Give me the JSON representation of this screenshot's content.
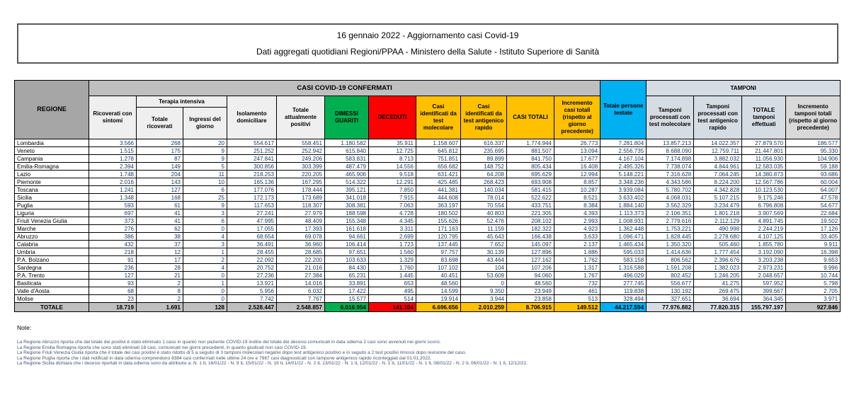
{
  "title": {
    "line1": "16 gennaio 2022 - Aggiornamento casi Covid-19",
    "line2": "Dati aggregati quotidiani Regioni/PPAA - Ministero della Salute - Istituto Superiore di Sanità"
  },
  "colors": {
    "green_dimessi": "#00B050",
    "red_deceduti": "#FF0000",
    "amber_casi": "#FFC000",
    "cyan_testate": "#00B0F0",
    "periwinkle_tamponi": "#D6DCE4",
    "gray_regione": "#A6A6A6",
    "gray_band": "#BFBFBF",
    "gray_light": "#D9D9D9",
    "number_text": "#17375E"
  },
  "table": {
    "header": {
      "regione": "REGIONE",
      "group_confermati": "CASI COVID-19 CONFERMATI",
      "group_tamponi": "TAMPONI",
      "group_terapia": "Terapia intensiva",
      "ricoverati": "Ricoverati con sintomi",
      "totale_ricoverati": "Totale ricoverati",
      "ingressi": "Ingressi del giorno",
      "isolamento": "Isolamento domiciliare",
      "attualmente_positivi": "Totale attualmente positivi",
      "dimessi": "DIMESSI GUARITI",
      "deceduti": "DECEDUTI",
      "casi_molecolare": "Casi identificati da test molecolare",
      "casi_antigenico": "Casi identificati da test antigenico rapido",
      "casi_totali": "CASI TOTALI",
      "incremento_casi": "Incremento casi totali (rispetto al giorno precedente)",
      "persone_testate": "Totale persone testate",
      "tamponi_molecolare": "Tamponi processati con test molecolare",
      "tamponi_antigenico": "Tamponi processati con test antigenico rapido",
      "totale_tamponi": "TOTALE tamponi effettuati",
      "incremento_tamponi": "Incremento tamponi totali (rispetto al giorno precedente)"
    },
    "rows": [
      {
        "region": "Lombardia",
        "values": [
          "3.566",
          "268",
          "20",
          "554.617",
          "558.451",
          "1.180.582",
          "35.911",
          "1.158.607",
          "616.337",
          "1.774.944",
          "26.773",
          "7.281.804",
          "13.857.213",
          "14.022.357",
          "27.879.570",
          "186.577"
        ]
      },
      {
        "region": "Veneto",
        "values": [
          "1.515",
          "175",
          "9",
          "251.252",
          "252.942",
          "615.840",
          "12.725",
          "645.812",
          "235.695",
          "881.507",
          "13.094",
          "2.556.735",
          "8.688.090",
          "12.759.711",
          "21.447.801",
          "95.330"
        ]
      },
      {
        "region": "Campania",
        "values": [
          "1.278",
          "87",
          "9",
          "247.841",
          "249.206",
          "583.831",
          "8.713",
          "751.851",
          "89.899",
          "841.750",
          "17.677",
          "4.167.104",
          "7.174.898",
          "3.882.032",
          "11.056.930",
          "104.906"
        ]
      },
      {
        "region": "Emilia-Romagna",
        "values": [
          "2.394",
          "149",
          "5",
          "300.856",
          "303.399",
          "487.479",
          "14.556",
          "656.682",
          "148.752",
          "805.434",
          "16.408",
          "2.495.326",
          "7.738.074",
          "4.844.961",
          "12.583.035",
          "59.188"
        ]
      },
      {
        "region": "Lazio",
        "values": [
          "1.748",
          "204",
          "11",
          "218.253",
          "220.205",
          "465.906",
          "9.518",
          "631.421",
          "64.208",
          "695.629",
          "12.994",
          "5.148.221",
          "7.316.628",
          "7.064.245",
          "14.380.873",
          "93.686"
        ]
      },
      {
        "region": "Piemonte",
        "values": [
          "2.016",
          "143",
          "10",
          "165.136",
          "167.295",
          "514.322",
          "12.291",
          "425.485",
          "268.423",
          "693.908",
          "8.857",
          "3.348.236",
          "4.343.586",
          "8.224.200",
          "12.567.786",
          "60.004"
        ]
      },
      {
        "region": "Toscana",
        "values": [
          "1.241",
          "127",
          "6",
          "177.076",
          "178.444",
          "395.121",
          "7.850",
          "441.381",
          "140.034",
          "581.415",
          "10.287",
          "3.939.084",
          "5.780.702",
          "4.342.828",
          "10.123.530",
          "64.007"
        ]
      },
      {
        "region": "Sicilia",
        "values": [
          "1.348",
          "168",
          "25",
          "172.173",
          "173.689",
          "341.018",
          "7.915",
          "444.608",
          "78.014",
          "522.622",
          "8.521",
          "3.633.402",
          "4.068.031",
          "5.107.215",
          "9.175.246",
          "47.578"
        ]
      },
      {
        "region": "Puglia",
        "values": [
          "593",
          "61",
          "9",
          "117.653",
          "118.307",
          "308.381",
          "7.063",
          "363.197",
          "70.554",
          "433.751",
          "8.384",
          "1.884.140",
          "3.562.329",
          "3.234.479",
          "6.796.808",
          "54.677"
        ]
      },
      {
        "region": "Liguria",
        "values": [
          "697",
          "41",
          "3",
          "27.241",
          "27.979",
          "188.598",
          "4.728",
          "180.502",
          "40.803",
          "221.305",
          "4.393",
          "1.113.373",
          "2.106.351",
          "1.801.218",
          "3.907.569",
          "22.684"
        ]
      },
      {
        "region": "Friuli Venezia Giulia",
        "values": [
          "373",
          "41",
          "6",
          "47.995",
          "48.409",
          "155.348",
          "4.345",
          "155.626",
          "52.476",
          "208.102",
          "2.993",
          "1.008.931",
          "2.779.616",
          "2.112.129",
          "4.891.745",
          "19.502"
        ]
      },
      {
        "region": "Marche",
        "values": [
          "276",
          "62",
          "0",
          "17.055",
          "17.393",
          "161.618",
          "3.311",
          "171.163",
          "11.159",
          "182.322",
          "4.923",
          "1.362.448",
          "1.753.221",
          "490.998",
          "2.244.219",
          "17.126"
        ]
      },
      {
        "region": "Abruzzo",
        "values": [
          "386",
          "38",
          "4",
          "68.654",
          "69.078",
          "94.661",
          "2.699",
          "120.795",
          "45.643",
          "166.438",
          "3.633",
          "1.096.471",
          "1.828.445",
          "2.278.680",
          "4.107.125",
          "33.405"
        ]
      },
      {
        "region": "Calabria",
        "values": [
          "432",
          "37",
          "3",
          "36.491",
          "36.960",
          "106.414",
          "1.723",
          "137.445",
          "7.652",
          "145.097",
          "2.137",
          "1.465.434",
          "1.350.320",
          "505.460",
          "1.855.780",
          "9.911"
        ]
      },
      {
        "region": "Umbria",
        "values": [
          "218",
          "12",
          "1",
          "28.455",
          "28.685",
          "97.651",
          "1.560",
          "97.757",
          "30.139",
          "127.896",
          "1.886",
          "595.033",
          "1.414.636",
          "1.777.454",
          "3.192.090",
          "16.398"
        ]
      },
      {
        "region": "P.A. Bolzano",
        "values": [
          "91",
          "17",
          "2",
          "22.092",
          "22.200",
          "103.633",
          "1.329",
          "83.698",
          "43.464",
          "127.162",
          "1.762",
          "583.158",
          "806.562",
          "2.396.676",
          "3.203.238",
          "9.653"
        ]
      },
      {
        "region": "Sardegna",
        "values": [
          "236",
          "28",
          "4",
          "20.752",
          "21.016",
          "84.430",
          "1.760",
          "107.102",
          "104",
          "107.206",
          "1.317",
          "1.316.588",
          "1.591.208",
          "1.382.023",
          "2.973.231",
          "9.996"
        ]
      },
      {
        "region": "P.A. Trento",
        "values": [
          "127",
          "21",
          "0",
          "27.236",
          "27.384",
          "65.231",
          "1.445",
          "40.451",
          "53.609",
          "94.060",
          "1.767",
          "496.029",
          "802.452",
          "1.246.205",
          "2.048.657",
          "10.744"
        ]
      },
      {
        "region": "Basilicata",
        "values": [
          "93",
          "2",
          "1",
          "13.921",
          "14.016",
          "33.891",
          "653",
          "48.560",
          "0",
          "48.560",
          "732",
          "277.745",
          "556.677",
          "41.275",
          "597.952",
          "5.798"
        ]
      },
      {
        "region": "Valle d'Aosta",
        "values": [
          "68",
          "8",
          "0",
          "5.956",
          "6.032",
          "17.422",
          "495",
          "14.599",
          "9.350",
          "23.949",
          "461",
          "119.838",
          "130.192",
          "269.475",
          "399.667",
          "2.705"
        ]
      },
      {
        "region": "Molise",
        "values": [
          "23",
          "2",
          "0",
          "7.742",
          "7.767",
          "15.577",
          "514",
          "19.914",
          "3.944",
          "23.858",
          "513",
          "328.494",
          "327.651",
          "36.694",
          "364.345",
          "3.971"
        ]
      }
    ],
    "total": {
      "label": "TOTALE",
      "values": [
        "18.719",
        "1.691",
        "128",
        "2.528.447",
        "2.548.857",
        "6.016.954",
        "141.104",
        "6.696.656",
        "2.010.259",
        "8.706.915",
        "149.512",
        "44.217.594",
        "77.976.882",
        "77.820.315",
        "155.797.197",
        "927.846"
      ]
    }
  },
  "notes": {
    "heading": "Note:",
    "lines": [
      "La Regione Abruzzo riporta che dal totale dei positivi è stato eliminato 1 caso in quanto non paziente COVID-19 inoltre del totale dei decessi comunicati in data odierna 2 casi sono avvenuti nei giorni scorsi.",
      "La Regione Emilia Romagna riporta che sono stati eliminati 18 casi, comunicati nei giorni precedenti, in quanto giudicati non casi COVID-19.",
      "La Regione Friuli Venezia Giulia riporta che il totale dei casi positivi è stato ridotto di 5 a seguito di 3 tamponi molecolari negativi dopo test antigenico positivo e in seguito a 2 test positivi rimossi dopo revisione del caso.",
      "La Regione Puglia riporta che i dati notificati in data odierna comprendono 8384 casi confermati nelle ultime 24 ore e 7987 casi diagnosticati con tampone antigenico rapido riconteggiati dal 01.01.2022.",
      "La Regione Sicilia dichiara che i decessi riportati in data odierna sono da attribuire a: N. 1 IL 16/01/22 - N. 9 IL 15/01/22 - N. 19 IL 14/01/22 - N. 2 IL 13/01/22 - N. 1 IL 12/01/22 - N. 1 IL 11/01/22 - N. 1 IL 08/01/22 - N. 2 IL 06/01/22 - N. 1 IL 12/12/21."
    ]
  }
}
